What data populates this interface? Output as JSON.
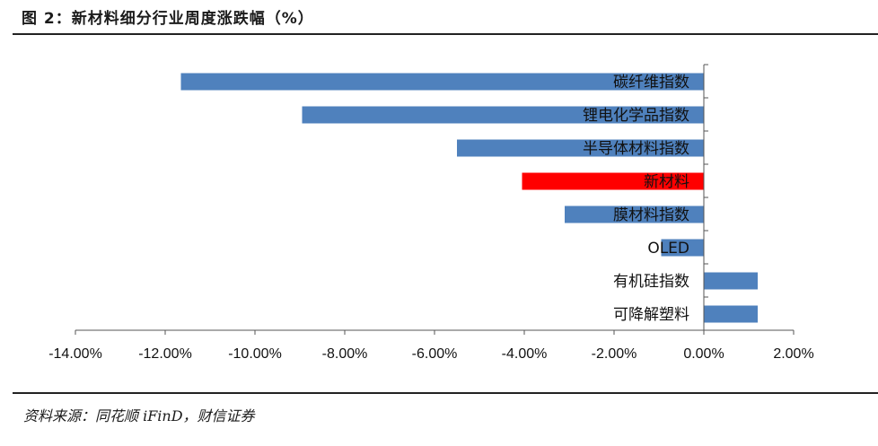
{
  "header": {
    "title": "图 2：新材料细分行业周度涨跌幅（%）"
  },
  "footer": {
    "source": "资料来源：同花顺 iFinD，财信证券"
  },
  "colors": {
    "bar_default": "#4f81bd",
    "bar_highlight": "#ff0000",
    "axis": "#555555"
  },
  "chart_data": {
    "type": "bar",
    "orientation": "horizontal",
    "categories": [
      "碳纤维指数",
      "锂电化学品指数",
      "半导体材料指数",
      "新材料",
      "膜材料指数",
      "OLED",
      "有机硅指数",
      "可降解塑料"
    ],
    "values": [
      -11.65,
      -8.95,
      -5.5,
      -4.05,
      -3.1,
      -0.95,
      1.2,
      1.2
    ],
    "highlight": [
      "新材料"
    ],
    "xlim": [
      -14,
      2
    ],
    "xticks": [
      -14,
      -12,
      -10,
      -8,
      -6,
      -4,
      -2,
      0,
      2
    ],
    "xtick_labels": [
      "-14.00%",
      "-12.00%",
      "-10.00%",
      "-8.00%",
      "-6.00%",
      "-4.00%",
      "-2.00%",
      "0.00%",
      "2.00%"
    ],
    "grid": false,
    "legend": "none"
  }
}
